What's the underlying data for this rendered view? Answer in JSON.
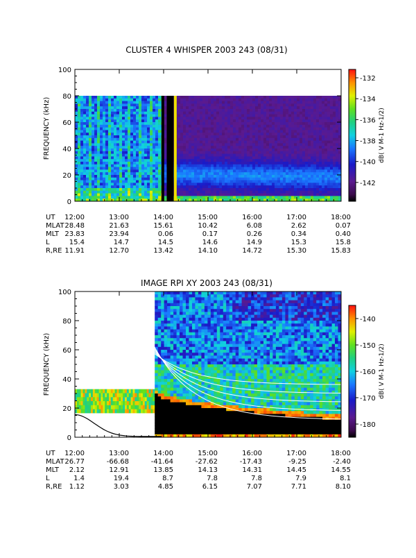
{
  "chart_data": [
    {
      "type": "heatmap",
      "title": "CLUSTER 4 WHISPER 2003 243 (08/31)",
      "ylabel": "FREQUENCY (kHz)",
      "ylim": [
        0,
        100
      ],
      "yticks": [
        0,
        20,
        40,
        60,
        80,
        100
      ],
      "x_ticks": [
        "12:00",
        "13:00",
        "14:00",
        "15:00",
        "16:00",
        "17:00",
        "18:00"
      ],
      "colorbar": {
        "label": "dB( V M⁻¹ Hz⁻¹ᐟ²)",
        "label_text": "dB( V M-1 Hz-1/2)",
        "ticks": [
          -132,
          -134,
          -136,
          -138,
          -140,
          -142
        ],
        "range": [
          -143.8,
          -131.2
        ]
      },
      "ephemeris": [
        {
          "name": "UT",
          "values": [
            "12:00",
            "13:00",
            "14:00",
            "15:00",
            "16:00",
            "17:00",
            "18:00"
          ]
        },
        {
          "name": "MLAT",
          "values": [
            "28.48",
            "21.63",
            "15.61",
            "10.42",
            "6.08",
            "2.62",
            "0.07"
          ]
        },
        {
          "name": "MLT",
          "values": [
            "23.83",
            "23.94",
            "0.06",
            "0.17",
            "0.26",
            "0.34",
            "0.40"
          ]
        },
        {
          "name": "L",
          "values": [
            "15.4",
            "14.7",
            "14.5",
            "14.6",
            "14.9",
            "15.3",
            "15.8"
          ]
        },
        {
          "name": "R,RE",
          "values": [
            "11.91",
            "12.70",
            "13.42",
            "14.10",
            "14.72",
            "15.30",
            "15.83"
          ]
        }
      ]
    },
    {
      "type": "heatmap",
      "title": "IMAGE RPI XY 2003 243 (08/31)",
      "ylabel": "FREQUENCY (kHz)",
      "ylim": [
        0,
        100
      ],
      "yticks": [
        0,
        20,
        40,
        60,
        80,
        100
      ],
      "x_ticks": [
        "12:00",
        "13:00",
        "14:00",
        "15:00",
        "16:00",
        "17:00",
        "18:00"
      ],
      "colorbar": {
        "label_text": "dB( V M-1 Hz-1/2)",
        "ticks": [
          -140,
          -150,
          -160,
          -170,
          -180
        ],
        "range": [
          -185,
          -135
        ]
      },
      "ephemeris": [
        {
          "name": "UT",
          "values": [
            "12:00",
            "13:00",
            "14:00",
            "15:00",
            "16:00",
            "17:00",
            "18:00"
          ]
        },
        {
          "name": "MLAT",
          "values": [
            "26.77",
            "-66.68",
            "-41.64",
            "-27.62",
            "-17.43",
            "-9.25",
            "-2.40"
          ]
        },
        {
          "name": "MLT",
          "values": [
            "2.12",
            "12.91",
            "13.85",
            "14.13",
            "14.31",
            "14.45",
            "14.55"
          ]
        },
        {
          "name": "L",
          "values": [
            "1.4",
            "19.4",
            "8.7",
            "7.8",
            "7.8",
            "7.9",
            "8.1"
          ]
        },
        {
          "name": "R,RE",
          "values": [
            "1.12",
            "3.03",
            "4.85",
            "6.15",
            "7.07",
            "7.71",
            "8.10"
          ]
        }
      ]
    }
  ]
}
